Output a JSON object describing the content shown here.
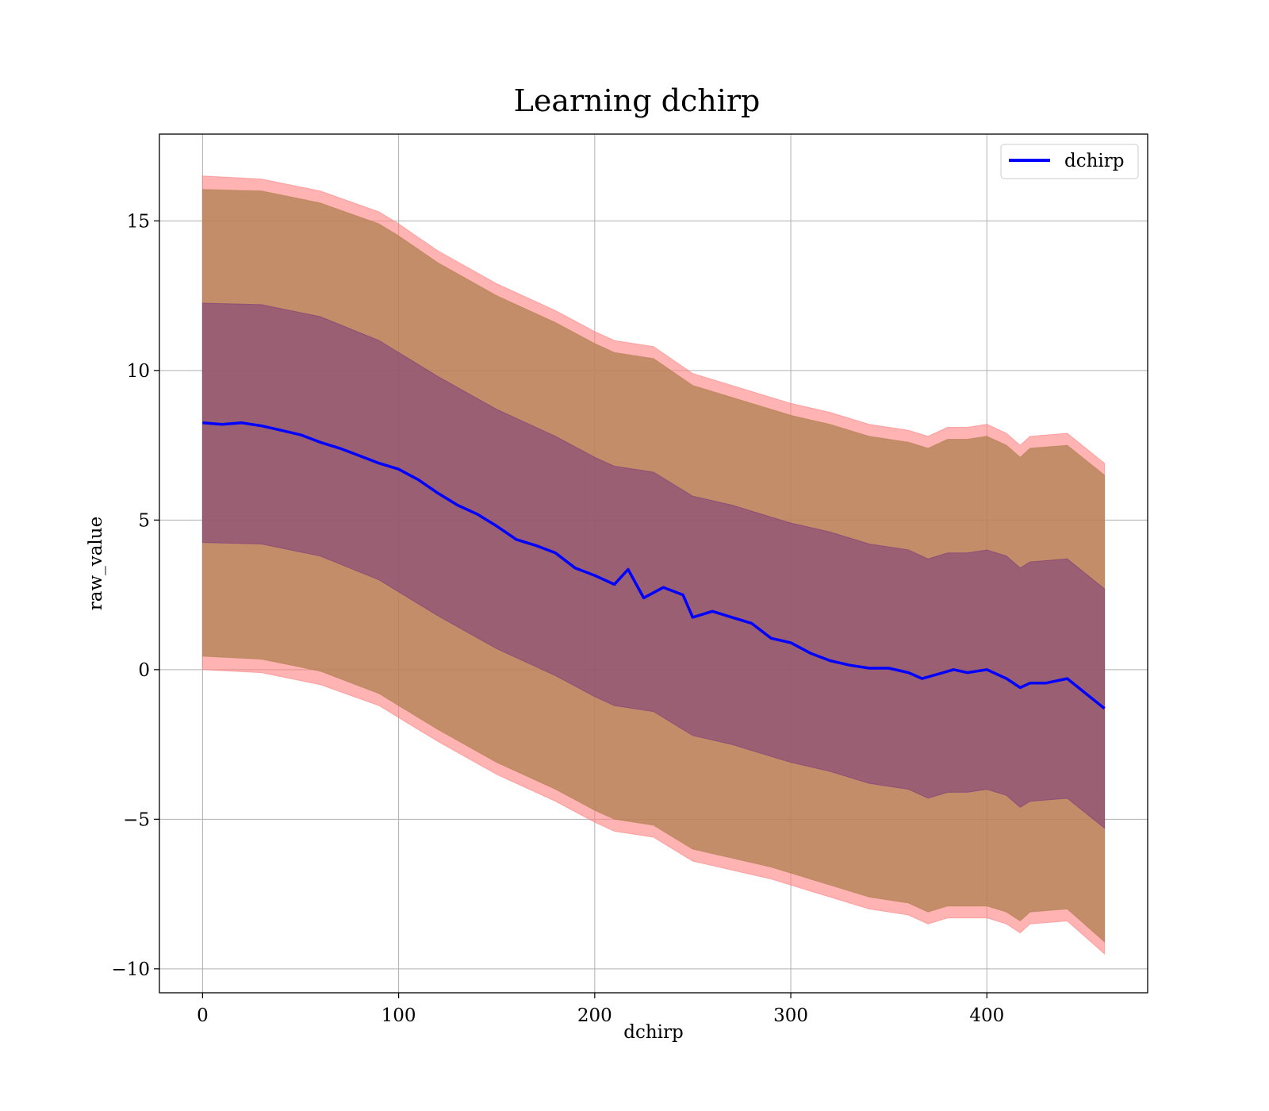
{
  "chart_data": {
    "type": "line",
    "title": "Learning dchirp",
    "xlabel": "dchirp",
    "ylabel": "raw_value",
    "xlim": [
      -22,
      482
    ],
    "ylim": [
      -10.8,
      17.9
    ],
    "xticks": [
      0,
      100,
      200,
      300,
      400
    ],
    "yticks": [
      -10,
      -5,
      0,
      5,
      10,
      15
    ],
    "xtick_labels": [
      "0",
      "100",
      "200",
      "300",
      "400"
    ],
    "ytick_labels": [
      "−10",
      "−5",
      "0",
      "5",
      "10",
      "15"
    ],
    "grid": true,
    "legend": {
      "placement": "top-right",
      "entries": [
        "dchirp"
      ]
    },
    "colors": {
      "line": "#0000ff",
      "outer_band": "#ff8080",
      "middle_band": "#b08050",
      "inner_band": "#7a3b7c"
    },
    "series": [
      {
        "name": "dchirp",
        "x": [
          0,
          10,
          20,
          30,
          40,
          50,
          60,
          70,
          80,
          90,
          100,
          110,
          120,
          130,
          140,
          150,
          160,
          170,
          180,
          190,
          200,
          210,
          217,
          225,
          235,
          245,
          250,
          260,
          270,
          280,
          290,
          300,
          310,
          320,
          330,
          340,
          350,
          360,
          367,
          375,
          383,
          390,
          400,
          410,
          417,
          422,
          430,
          441,
          460
        ],
        "y": [
          8.25,
          8.2,
          8.25,
          8.15,
          8.0,
          7.85,
          7.6,
          7.4,
          7.15,
          6.9,
          6.7,
          6.35,
          5.9,
          5.5,
          5.2,
          4.8,
          4.35,
          4.15,
          3.9,
          3.4,
          3.15,
          2.85,
          3.35,
          2.4,
          2.75,
          2.5,
          1.75,
          1.95,
          1.75,
          1.55,
          1.05,
          0.9,
          0.55,
          0.3,
          0.15,
          0.05,
          0.05,
          -0.1,
          -0.3,
          -0.15,
          0.0,
          -0.1,
          0.0,
          -0.3,
          -0.6,
          -0.45,
          -0.45,
          -0.3,
          -1.3
        ]
      }
    ],
    "bands": [
      {
        "name": "outer",
        "x": [
          0,
          30,
          60,
          90,
          100,
          120,
          150,
          180,
          200,
          210,
          230,
          250,
          270,
          290,
          300,
          320,
          340,
          360,
          370,
          380,
          390,
          400,
          410,
          417,
          422,
          441,
          460
        ],
        "upper": [
          16.5,
          16.4,
          16.0,
          15.3,
          14.9,
          14.0,
          12.9,
          12.0,
          11.3,
          11.0,
          10.8,
          9.9,
          9.5,
          9.1,
          8.9,
          8.6,
          8.2,
          8.0,
          7.8,
          8.1,
          8.1,
          8.2,
          7.9,
          7.5,
          7.8,
          7.9,
          6.9
        ],
        "lower": [
          0.0,
          -0.1,
          -0.5,
          -1.2,
          -1.6,
          -2.4,
          -3.5,
          -4.4,
          -5.1,
          -5.4,
          -5.6,
          -6.4,
          -6.7,
          -7.0,
          -7.2,
          -7.6,
          -8.0,
          -8.2,
          -8.5,
          -8.3,
          -8.3,
          -8.3,
          -8.5,
          -8.8,
          -8.5,
          -8.4,
          -9.5
        ]
      },
      {
        "name": "middle",
        "x": [
          0,
          30,
          60,
          90,
          100,
          120,
          150,
          180,
          200,
          210,
          230,
          250,
          270,
          290,
          300,
          320,
          340,
          360,
          370,
          380,
          390,
          400,
          410,
          417,
          422,
          441,
          460
        ],
        "upper": [
          16.05,
          16.0,
          15.6,
          14.9,
          14.5,
          13.6,
          12.5,
          11.6,
          10.9,
          10.6,
          10.4,
          9.5,
          9.1,
          8.7,
          8.5,
          8.2,
          7.8,
          7.6,
          7.4,
          7.7,
          7.7,
          7.8,
          7.5,
          7.1,
          7.4,
          7.5,
          6.5
        ],
        "lower": [
          0.45,
          0.35,
          -0.05,
          -0.8,
          -1.2,
          -2.0,
          -3.1,
          -4.0,
          -4.7,
          -5.0,
          -5.2,
          -6.0,
          -6.3,
          -6.6,
          -6.8,
          -7.2,
          -7.6,
          -7.8,
          -8.1,
          -7.9,
          -7.9,
          -7.9,
          -8.1,
          -8.4,
          -8.1,
          -8.0,
          -9.1
        ]
      },
      {
        "name": "inner",
        "x": [
          0,
          30,
          60,
          90,
          100,
          120,
          150,
          180,
          200,
          210,
          230,
          250,
          270,
          290,
          300,
          320,
          340,
          360,
          370,
          380,
          390,
          400,
          410,
          417,
          422,
          441,
          460
        ],
        "upper": [
          12.25,
          12.2,
          11.8,
          11.0,
          10.6,
          9.8,
          8.7,
          7.8,
          7.1,
          6.8,
          6.6,
          5.8,
          5.5,
          5.1,
          4.9,
          4.6,
          4.2,
          4.0,
          3.7,
          3.9,
          3.9,
          4.0,
          3.8,
          3.4,
          3.6,
          3.7,
          2.7
        ],
        "lower": [
          4.25,
          4.2,
          3.8,
          3.0,
          2.6,
          1.8,
          0.7,
          -0.2,
          -0.9,
          -1.2,
          -1.4,
          -2.2,
          -2.5,
          -2.9,
          -3.1,
          -3.4,
          -3.8,
          -4.0,
          -4.3,
          -4.1,
          -4.1,
          -4.0,
          -4.2,
          -4.6,
          -4.4,
          -4.3,
          -5.3
        ]
      }
    ]
  }
}
